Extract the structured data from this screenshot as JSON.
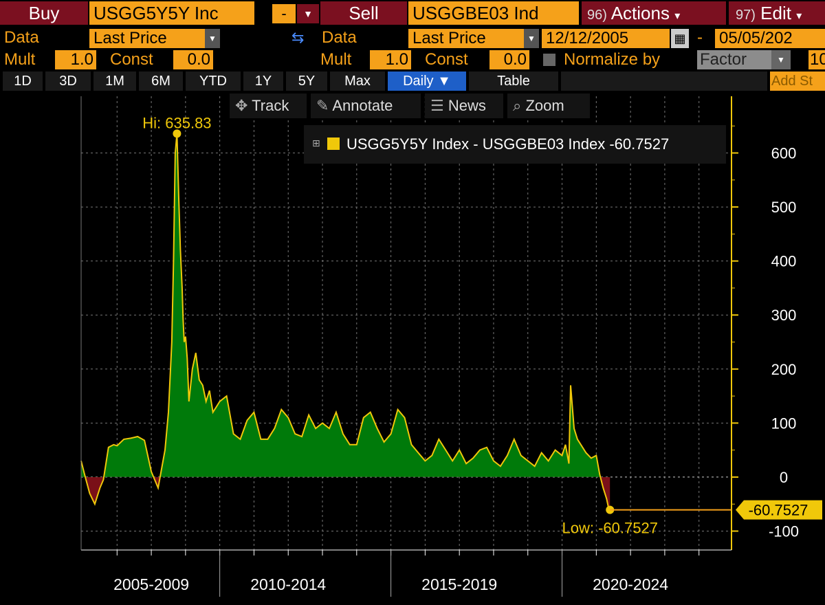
{
  "top_bar": {
    "buy_label": "Buy",
    "buy_ticker": "USGG5Y5Y Inc",
    "minus_label": "-",
    "sell_label": "Sell",
    "sell_ticker": "USGGBE03 Ind",
    "actions_num": "96)",
    "actions_label": "Actions",
    "edit_num": "97)",
    "edit_label": "Edit"
  },
  "row2": {
    "data_label_left": "Data",
    "data_value_left": "Last Price",
    "data_label_right": "Data",
    "data_value_right": "Last Price",
    "start_date": "12/12/2005",
    "dash": "-",
    "end_date": "05/05/202"
  },
  "row3": {
    "mult_label_left": "Mult",
    "mult_value_left": "1.0",
    "const_label_left": "Const",
    "const_value_left": "0.0",
    "mult_label_right": "Mult",
    "mult_value_right": "1.0",
    "const_label_right": "Const",
    "const_value_right": "0.0",
    "normalize_label": "Normalize by",
    "normalize_value": "Factor",
    "normalize_num": "10"
  },
  "tabs": [
    "1D",
    "3D",
    "1M",
    "6M",
    "YTD",
    "1Y",
    "5Y",
    "Max",
    "Daily ▼",
    "Table"
  ],
  "add_study": "Add St",
  "toolbar": {
    "track": "Track",
    "annotate": "Annotate",
    "news": "News",
    "zoom": "Zoom"
  },
  "colors": {
    "fill_pos": "#007a0a",
    "fill_neg": "#7a1018",
    "line": "#f0c80a",
    "accent": "#f5a11a"
  },
  "chart_data": {
    "type": "area",
    "legend": "USGG5Y5Y Index - USGGBE03 Index -60.7527",
    "legend_placement": "top-right",
    "hi_label": "Hi: 635.83",
    "low_label": "Low: -60.7527",
    "last_value_label": "-60.7527",
    "y_ticks": [
      600,
      500,
      400,
      300,
      200,
      100,
      0,
      -100
    ],
    "y_tick_labels": [
      "600",
      "500",
      "400",
      "300",
      "200",
      "100",
      "0",
      "-100"
    ],
    "ylim": [
      -135,
      705
    ],
    "x_range": [
      2005.95,
      2024.95
    ],
    "x_period_labels": [
      "2005-2009",
      "2010-2014",
      "2015-2019",
      "2020-2024"
    ],
    "x_period_centers": [
      2008.0,
      2012.0,
      2017.0,
      2022.0
    ],
    "x_period_dividers": [
      2010.0,
      2015.0,
      2020.0
    ],
    "grid": true,
    "series": [
      {
        "values_x": [
          2005.95,
          2006.05,
          2006.2,
          2006.35,
          2006.5,
          2006.6,
          2006.75,
          2006.9,
          2007.0,
          2007.2,
          2007.4,
          2007.6,
          2007.8,
          2008.0,
          2008.2,
          2008.4,
          2008.5,
          2008.6,
          2008.65,
          2008.7,
          2008.75,
          2008.8,
          2008.85,
          2008.9,
          2008.93,
          2008.96,
          2009.0,
          2009.05,
          2009.1,
          2009.2,
          2009.3,
          2009.4,
          2009.5,
          2009.6,
          2009.7,
          2009.8,
          2009.9,
          2010.0,
          2010.2,
          2010.4,
          2010.6,
          2010.8,
          2011.0,
          2011.2,
          2011.4,
          2011.6,
          2011.8,
          2012.0,
          2012.2,
          2012.4,
          2012.6,
          2012.8,
          2013.0,
          2013.2,
          2013.4,
          2013.6,
          2013.8,
          2014.0,
          2014.2,
          2014.4,
          2014.6,
          2014.8,
          2015.0,
          2015.2,
          2015.4,
          2015.6,
          2015.8,
          2016.0,
          2016.2,
          2016.4,
          2016.6,
          2016.8,
          2017.0,
          2017.2,
          2017.4,
          2017.6,
          2017.8,
          2018.0,
          2018.2,
          2018.4,
          2018.6,
          2018.8,
          2019.0,
          2019.2,
          2019.4,
          2019.6,
          2019.8,
          2020.0,
          2020.1,
          2020.2,
          2020.25,
          2020.3,
          2020.35,
          2020.45,
          2020.55,
          2020.7,
          2020.85,
          2021.0,
          2021.1,
          2021.2,
          2021.3,
          2021.35,
          2021.4
        ],
        "values_y": [
          30,
          5,
          -30,
          -50,
          -20,
          -5,
          55,
          60,
          58,
          70,
          72,
          75,
          68,
          10,
          -20,
          50,
          120,
          250,
          400,
          600,
          635.83,
          520,
          420,
          350,
          290,
          250,
          260,
          220,
          140,
          200,
          230,
          180,
          170,
          140,
          160,
          120,
          130,
          140,
          150,
          80,
          70,
          105,
          120,
          70,
          70,
          90,
          125,
          110,
          80,
          75,
          115,
          90,
          100,
          90,
          120,
          80,
          60,
          60,
          110,
          120,
          90,
          65,
          80,
          125,
          110,
          60,
          45,
          30,
          40,
          70,
          50,
          30,
          50,
          25,
          35,
          50,
          55,
          30,
          20,
          40,
          70,
          40,
          30,
          20,
          45,
          30,
          50,
          40,
          60,
          25,
          170,
          130,
          90,
          70,
          60,
          45,
          35,
          40,
          5,
          -20,
          -40,
          -55,
          -60.75
        ]
      }
    ]
  }
}
